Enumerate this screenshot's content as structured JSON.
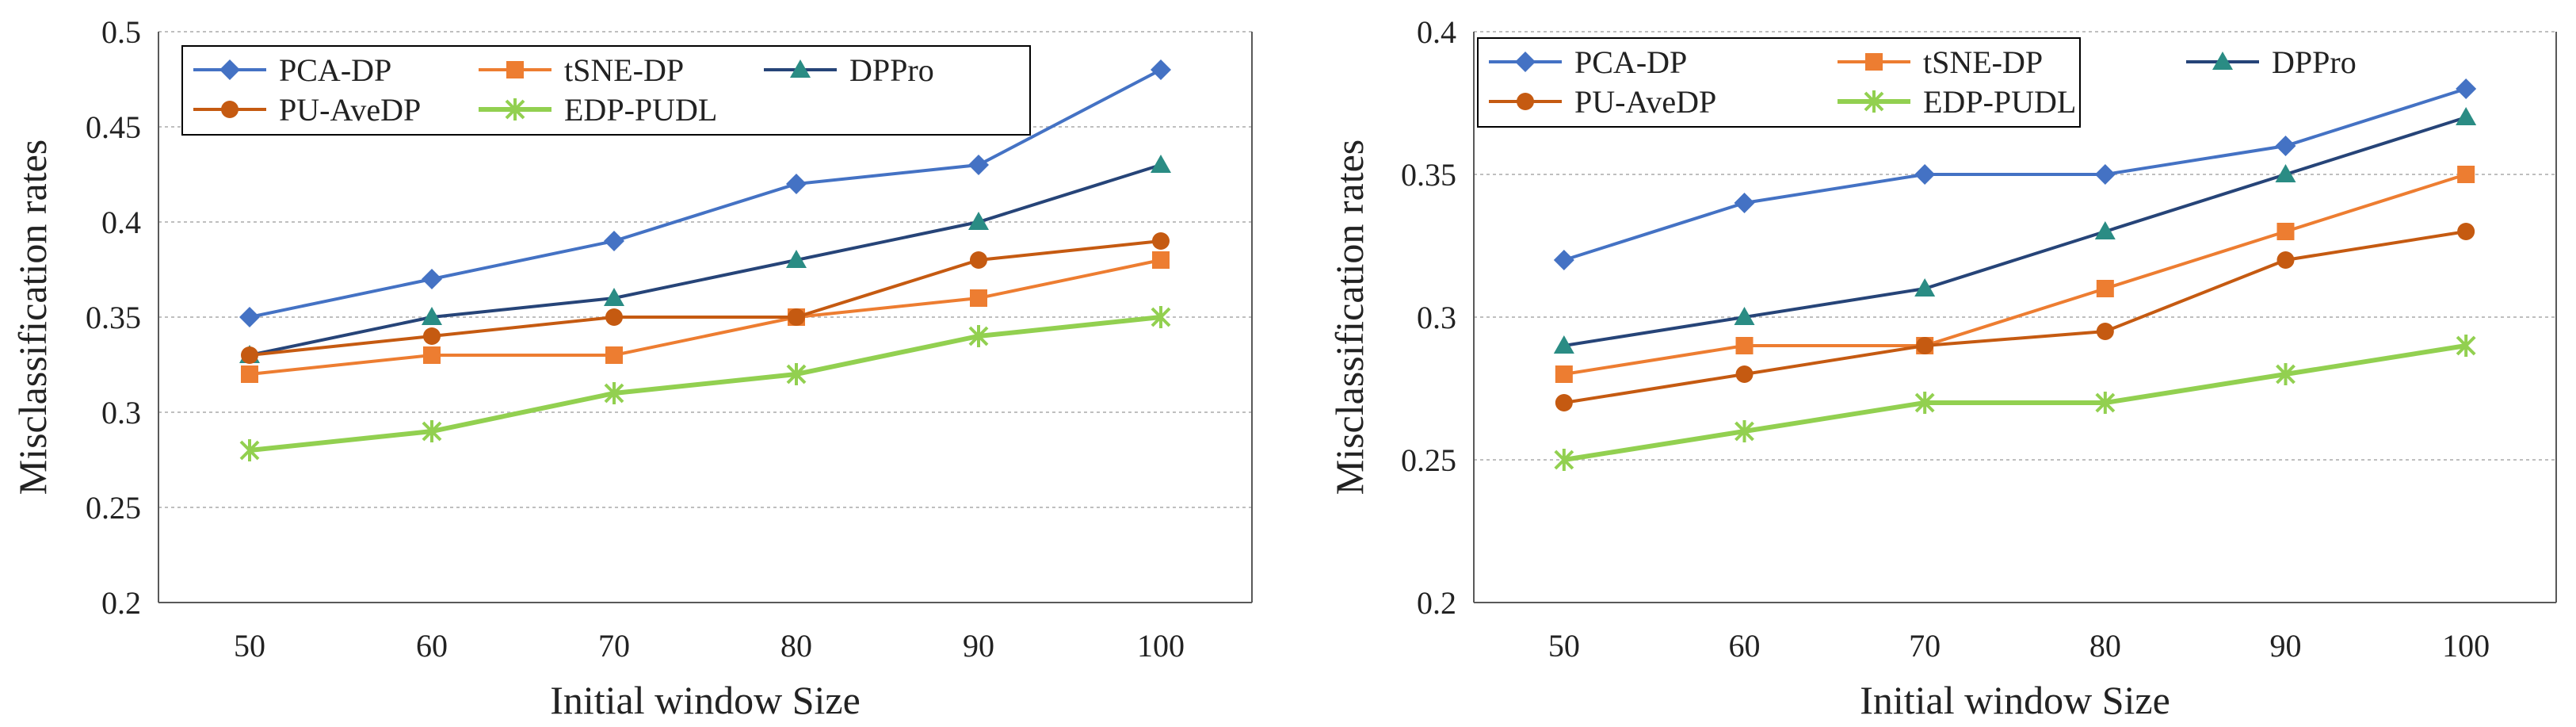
{
  "colors": {
    "PCA-DP": "#4472C4",
    "tSNE-DP": "#ED7D31",
    "DPPro": "#264478",
    "PU-AveDP": "#C55A11",
    "EDP-PUDL": "#92D050",
    "grid": "#BFBFBF",
    "axis": "#595959",
    "marker_DPPro": "#2A8C84"
  },
  "chart_data": [
    {
      "type": "line",
      "title": "",
      "xlabel": "Initial window Size",
      "ylabel": "Misclassification rates",
      "categories": [
        "50",
        "60",
        "70",
        "80",
        "90",
        "100"
      ],
      "ylim": [
        0.2,
        0.5
      ],
      "yticks": [
        "0.2",
        "0.25",
        "0.3",
        "0.35",
        "0.4",
        "0.45",
        "0.5"
      ],
      "grid": true,
      "legend": "top-left",
      "series": [
        {
          "name": "PCA-DP",
          "marker": "diamond",
          "values": [
            0.35,
            0.37,
            0.39,
            0.42,
            0.43,
            0.48
          ]
        },
        {
          "name": "tSNE-DP",
          "marker": "square",
          "values": [
            0.32,
            0.33,
            0.33,
            0.35,
            0.36,
            0.38
          ]
        },
        {
          "name": "DPPro",
          "marker": "triangle",
          "values": [
            0.33,
            0.35,
            0.36,
            0.38,
            0.4,
            0.43
          ]
        },
        {
          "name": "PU-AveDP",
          "marker": "circle",
          "values": [
            0.33,
            0.34,
            0.35,
            0.35,
            0.38,
            0.39
          ]
        },
        {
          "name": "EDP-PUDL",
          "marker": "star",
          "values": [
            0.28,
            0.29,
            0.31,
            0.32,
            0.34,
            0.35
          ]
        }
      ]
    },
    {
      "type": "line",
      "title": "",
      "xlabel": "Initial window Size",
      "ylabel": "Misclassification rates",
      "categories": [
        "50",
        "60",
        "70",
        "80",
        "90",
        "100"
      ],
      "ylim": [
        0.2,
        0.4
      ],
      "yticks": [
        "0.2",
        "0.25",
        "0.3",
        "0.35",
        "0.4"
      ],
      "grid": true,
      "legend": "top-left",
      "series": [
        {
          "name": "PCA-DP",
          "marker": "diamond",
          "values": [
            0.32,
            0.34,
            0.35,
            0.35,
            0.36,
            0.38
          ]
        },
        {
          "name": "tSNE-DP",
          "marker": "square",
          "values": [
            0.28,
            0.29,
            0.29,
            0.31,
            0.33,
            0.35
          ]
        },
        {
          "name": "DPPro",
          "marker": "triangle",
          "values": [
            0.29,
            0.3,
            0.31,
            0.33,
            0.35,
            0.37
          ]
        },
        {
          "name": "PU-AveDP",
          "marker": "circle",
          "values": [
            0.27,
            0.28,
            0.29,
            0.295,
            0.32,
            0.33
          ]
        },
        {
          "name": "EDP-PUDL",
          "marker": "star",
          "values": [
            0.25,
            0.26,
            0.27,
            0.27,
            0.28,
            0.29
          ]
        }
      ]
    }
  ]
}
